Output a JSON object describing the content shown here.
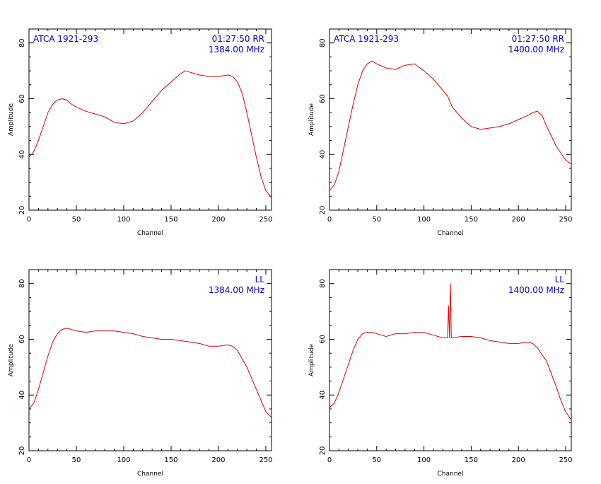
{
  "colors": {
    "trace": "#dd0000",
    "annotation": "#0000cc",
    "axis": "#000000"
  },
  "chart_data": [
    {
      "type": "line",
      "xlabel": "Channel",
      "ylabel": "Amplitude",
      "xlim": [
        0,
        256
      ],
      "ylim": [
        20,
        85
      ],
      "x_ticks": [
        "0",
        "50",
        "100",
        "150",
        "200",
        "250"
      ],
      "y_ticks": [
        "20",
        "40",
        "60",
        "80"
      ],
      "annotation_left": "ATCA 1921-293",
      "annotation_right": [
        "01:27:50  RR",
        "1384.00  MHz"
      ],
      "series": [
        {
          "points": [
            [
              0,
              39
            ],
            [
              5,
              41
            ],
            [
              10,
              45
            ],
            [
              15,
              50
            ],
            [
              20,
              55
            ],
            [
              25,
              58
            ],
            [
              30,
              59.5
            ],
            [
              35,
              60
            ],
            [
              40,
              59.5
            ],
            [
              45,
              58
            ],
            [
              50,
              57
            ],
            [
              60,
              55.5
            ],
            [
              70,
              54.5
            ],
            [
              80,
              53.5
            ],
            [
              90,
              51.5
            ],
            [
              100,
              51
            ],
            [
              110,
              52
            ],
            [
              120,
              55
            ],
            [
              130,
              59
            ],
            [
              140,
              63
            ],
            [
              150,
              66
            ],
            [
              160,
              69
            ],
            [
              165,
              70
            ],
            [
              170,
              69.5
            ],
            [
              180,
              68.5
            ],
            [
              190,
              68
            ],
            [
              200,
              68
            ],
            [
              210,
              68.5
            ],
            [
              215,
              68
            ],
            [
              220,
              66
            ],
            [
              225,
              62
            ],
            [
              230,
              55
            ],
            [
              235,
              47
            ],
            [
              240,
              39
            ],
            [
              245,
              32
            ],
            [
              250,
              27
            ],
            [
              256,
              24.5
            ]
          ]
        }
      ]
    },
    {
      "type": "line",
      "xlabel": "Channel",
      "ylabel": "Amplitude",
      "xlim": [
        0,
        256
      ],
      "ylim": [
        20,
        85
      ],
      "x_ticks": [
        "0",
        "50",
        "100",
        "150",
        "200",
        "250"
      ],
      "y_ticks": [
        "20",
        "40",
        "60",
        "80"
      ],
      "annotation_left": "ATCA 1921-293",
      "annotation_right": [
        "01:27:50  RR",
        "1400.00  MHz"
      ],
      "series": [
        {
          "points": [
            [
              0,
              27
            ],
            [
              5,
              29
            ],
            [
              10,
              34
            ],
            [
              15,
              42
            ],
            [
              20,
              50
            ],
            [
              25,
              58
            ],
            [
              30,
              65
            ],
            [
              35,
              70
            ],
            [
              40,
              72.5
            ],
            [
              45,
              73.5
            ],
            [
              50,
              72.5
            ],
            [
              60,
              71
            ],
            [
              70,
              70.5
            ],
            [
              80,
              72
            ],
            [
              90,
              72.5
            ],
            [
              100,
              70
            ],
            [
              110,
              67
            ],
            [
              120,
              63
            ],
            [
              125,
              61
            ],
            [
              130,
              57
            ],
            [
              140,
              53
            ],
            [
              150,
              50
            ],
            [
              160,
              49
            ],
            [
              170,
              49.5
            ],
            [
              180,
              50
            ],
            [
              190,
              51
            ],
            [
              200,
              52.5
            ],
            [
              210,
              54
            ],
            [
              215,
              55
            ],
            [
              220,
              55.5
            ],
            [
              225,
              54
            ],
            [
              230,
              50
            ],
            [
              240,
              43
            ],
            [
              250,
              38
            ],
            [
              256,
              36.5
            ]
          ]
        }
      ]
    },
    {
      "type": "line",
      "xlabel": "Channel",
      "ylabel": "Amplitude",
      "xlim": [
        0,
        256
      ],
      "ylim": [
        20,
        85
      ],
      "x_ticks": [
        "0",
        "50",
        "100",
        "150",
        "200",
        "250"
      ],
      "y_ticks": [
        "20",
        "40",
        "60",
        "80"
      ],
      "annotation_left": "",
      "annotation_right": [
        "LL",
        "1384.00  MHz"
      ],
      "series": [
        {
          "points": [
            [
              0,
              35
            ],
            [
              5,
              37
            ],
            [
              10,
              42
            ],
            [
              15,
              48
            ],
            [
              20,
              54
            ],
            [
              25,
              59
            ],
            [
              30,
              62
            ],
            [
              35,
              63.5
            ],
            [
              40,
              64
            ],
            [
              45,
              63.5
            ],
            [
              50,
              63
            ],
            [
              60,
              62.5
            ],
            [
              70,
              63
            ],
            [
              80,
              63
            ],
            [
              90,
              63
            ],
            [
              100,
              62.5
            ],
            [
              110,
              62
            ],
            [
              120,
              61
            ],
            [
              130,
              60.5
            ],
            [
              140,
              60
            ],
            [
              150,
              60
            ],
            [
              160,
              59.5
            ],
            [
              170,
              59
            ],
            [
              180,
              58.5
            ],
            [
              190,
              57.5
            ],
            [
              200,
              57.5
            ],
            [
              210,
              58
            ],
            [
              215,
              57.5
            ],
            [
              220,
              56
            ],
            [
              230,
              50
            ],
            [
              240,
              42
            ],
            [
              245,
              38
            ],
            [
              250,
              34
            ],
            [
              256,
              32
            ]
          ]
        }
      ]
    },
    {
      "type": "line",
      "xlabel": "Channel",
      "ylabel": "Amplitude",
      "xlim": [
        0,
        256
      ],
      "ylim": [
        20,
        85
      ],
      "x_ticks": [
        "0",
        "50",
        "100",
        "150",
        "200",
        "250"
      ],
      "y_ticks": [
        "20",
        "40",
        "60",
        "80"
      ],
      "annotation_left": "",
      "annotation_right": [
        "LL",
        "1400.00  MHz"
      ],
      "series": [
        {
          "points": [
            [
              0,
              35.5
            ],
            [
              5,
              37
            ],
            [
              10,
              41
            ],
            [
              15,
              46
            ],
            [
              20,
              51
            ],
            [
              25,
              56
            ],
            [
              30,
              60
            ],
            [
              35,
              62
            ],
            [
              40,
              62.5
            ],
            [
              45,
              62.5
            ],
            [
              50,
              62
            ],
            [
              60,
              61
            ],
            [
              70,
              62
            ],
            [
              80,
              62
            ],
            [
              90,
              62.5
            ],
            [
              100,
              62.5
            ],
            [
              110,
              61.5
            ],
            [
              120,
              60.5
            ],
            [
              125,
              60.5
            ],
            [
              126,
              72
            ],
            [
              127,
              60.5
            ],
            [
              128,
              80
            ],
            [
              129,
              60.5
            ],
            [
              130,
              60.5
            ],
            [
              140,
              61
            ],
            [
              150,
              61
            ],
            [
              160,
              60.5
            ],
            [
              170,
              59.5
            ],
            [
              180,
              59
            ],
            [
              190,
              58.5
            ],
            [
              200,
              58.5
            ],
            [
              210,
              59
            ],
            [
              215,
              58.5
            ],
            [
              220,
              57
            ],
            [
              230,
              52
            ],
            [
              240,
              43
            ],
            [
              245,
              38
            ],
            [
              250,
              34
            ],
            [
              256,
              31
            ]
          ]
        }
      ]
    }
  ]
}
